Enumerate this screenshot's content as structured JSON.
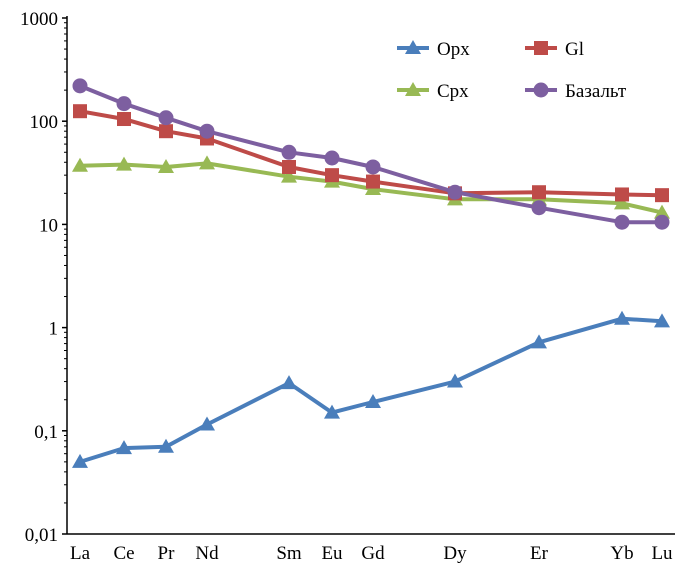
{
  "chart_data": {
    "type": "line",
    "title": "",
    "xlabel": "",
    "ylabel": "",
    "y_scale": "log",
    "ylim": [
      0.01,
      1000
    ],
    "y_ticks": [
      {
        "value": 0.01,
        "label": "0,01"
      },
      {
        "value": 0.1,
        "label": "0,1"
      },
      {
        "value": 1,
        "label": "1"
      },
      {
        "value": 10,
        "label": "10"
      },
      {
        "value": 100,
        "label": "100"
      },
      {
        "value": 1000,
        "label": "1000"
      }
    ],
    "categories": [
      "La",
      "Ce",
      "Pr",
      "Nd",
      "Sm",
      "Eu",
      "Gd",
      "Dy",
      "Er",
      "Yb",
      "Lu"
    ],
    "grid": false,
    "legend_position": "top-right",
    "series": [
      {
        "name": "Opx",
        "color": "#4a7ebb",
        "marker": "triangle",
        "values": [
          0.05,
          0.068,
          0.07,
          0.115,
          0.29,
          0.15,
          0.19,
          0.3,
          0.72,
          1.22,
          1.15
        ]
      },
      {
        "name": "Gl",
        "color": "#be4b48",
        "marker": "square",
        "values": [
          125,
          105,
          80,
          68,
          36,
          30,
          26,
          20,
          20.5,
          19.5,
          19.2
        ]
      },
      {
        "name": "Cpx",
        "color": "#98b954",
        "marker": "triangle",
        "values": [
          37,
          38,
          36,
          39,
          29,
          26,
          22,
          17.5,
          17.5,
          16,
          13
        ]
      },
      {
        "name": "Базальт",
        "color": "#7d5fa0",
        "marker": "circle",
        "values": [
          220,
          148,
          108,
          80,
          50,
          44,
          36,
          20.5,
          14.5,
          10.5,
          10.5
        ]
      }
    ]
  }
}
